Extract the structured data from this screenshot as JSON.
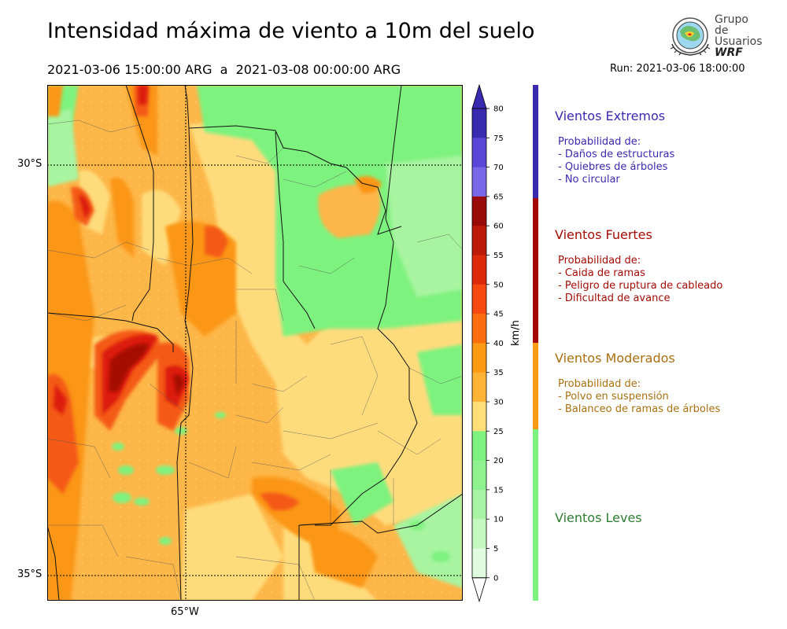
{
  "header": {
    "title": "Intensidad máxima de viento a 10m del suelo",
    "period": "2021-03-06 15:00:00 ARG  a  2021-03-08 00:00:00 ARG",
    "run": "Run: 2021-03-06 18:00:00"
  },
  "logo": {
    "line1": "Grupo de",
    "line2": "Usuarios",
    "line3": "WRF"
  },
  "map": {
    "lat_labels": [
      "30°S",
      "35°S"
    ],
    "lon_labels": [
      "65°W"
    ],
    "colors": {
      "green_light": "#7ef27e",
      "green_pale": "#a8f4a0",
      "yellow": "#fedc7c",
      "orange_light": "#fdb648",
      "orange": "#fb9614",
      "red_orange": "#f45a14",
      "red": "#dc1a0a",
      "dark_red": "#a40806"
    }
  },
  "colorbar": {
    "unit": "km/h",
    "ticks": [
      "80",
      "75",
      "70",
      "65",
      "60",
      "55",
      "50",
      "45",
      "40",
      "35",
      "30",
      "25",
      "20",
      "15",
      "10",
      "5",
      "0"
    ],
    "colors": [
      "#3a2ab0",
      "#5a46d8",
      "#7868e8",
      "#9a0a06",
      "#bc1a08",
      "#dc2a0a",
      "#f64a10",
      "#fb6e0e",
      "#fc9a14",
      "#fdb436",
      "#fede76",
      "#7ef27e",
      "#8ef28e",
      "#a8f4a4",
      "#c4f8c0",
      "#e0fce0"
    ]
  },
  "categories": [
    {
      "title": "Vientos Extremos",
      "color": "#3a2ab0",
      "subtitle": "Probabilidad de:",
      "items": [
        "- Daños de estructuras",
        "- Quiebres de árboles",
        "- No circular"
      ]
    },
    {
      "title": "Vientos Fuertes",
      "color": "#a40c06",
      "subtitle": "Probabilidad de:",
      "items": [
        "- Caida de ramas",
        "- Peligro de ruptura de cableado",
        "- Dificultad de avance"
      ]
    },
    {
      "title": "Vientos Moderados",
      "color": "#a87010",
      "subtitle": "Probabilidad de:",
      "items": [
        "- Polvo en suspensión",
        "- Balanceo de ramas de árboles"
      ]
    },
    {
      "title": "Vientos Leves",
      "color": "#2e7d32",
      "subtitle": "",
      "items": []
    }
  ],
  "strip_colors": [
    "#3a2ab0",
    "#a40806",
    "#fb9a14",
    "#7ef27e"
  ]
}
